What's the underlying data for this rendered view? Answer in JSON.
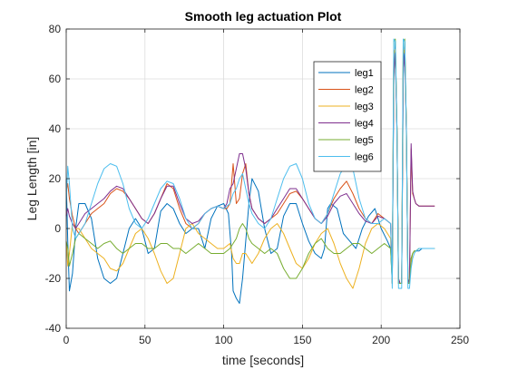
{
  "chart_data": {
    "type": "line",
    "title": "Smooth leg actuation Plot",
    "xlabel": "time [seconds]",
    "ylabel": "Leg Length [in]",
    "xlim": [
      0,
      250
    ],
    "ylim": [
      -40,
      80
    ],
    "xticks": [
      0,
      50,
      100,
      150,
      200,
      250
    ],
    "yticks": [
      -40,
      -20,
      0,
      20,
      40,
      60,
      80
    ],
    "xtick_labels": [
      "0",
      "50",
      "100",
      "150",
      "200",
      "250"
    ],
    "ytick_labels": [
      "-40",
      "-20",
      "0",
      "20",
      "40",
      "60",
      "80"
    ],
    "grid": true,
    "legend_position": "top-right",
    "series": [
      {
        "name": "leg1",
        "color": "#0072BD",
        "x": [
          0,
          1,
          2,
          4,
          6,
          8,
          12,
          16,
          20,
          24,
          28,
          32,
          36,
          40,
          44,
          48,
          52,
          56,
          60,
          64,
          68,
          72,
          76,
          80,
          84,
          88,
          92,
          96,
          100,
          103,
          105,
          106,
          108,
          110,
          112,
          114,
          116,
          118,
          122,
          126,
          130,
          134,
          138,
          142,
          146,
          150,
          154,
          158,
          162,
          164,
          166,
          168,
          172,
          176,
          180,
          184,
          188,
          192,
          196,
          200,
          204,
          206,
          207,
          208,
          209,
          210,
          211,
          212,
          213,
          214,
          215,
          216,
          217,
          218,
          219,
          220,
          221,
          222,
          224,
          226,
          228,
          230,
          232,
          234
        ],
        "y": [
          20,
          -5,
          -25,
          -18,
          0,
          10,
          10,
          4,
          -12,
          -20,
          -22,
          -20,
          -10,
          0,
          4,
          0,
          -10,
          -8,
          7,
          10,
          8,
          2,
          -2,
          0,
          0,
          -8,
          4,
          9,
          10,
          6,
          -10,
          -25,
          -28,
          -30,
          -20,
          -5,
          10,
          20,
          15,
          0,
          -10,
          -8,
          5,
          10,
          10,
          2,
          -5,
          -10,
          -12,
          -8,
          8,
          10,
          8,
          -2,
          -5,
          -8,
          0,
          5,
          8,
          0,
          -5,
          -8,
          -22,
          60,
          75,
          40,
          -22,
          -22,
          -22,
          60,
          75,
          40,
          -22,
          -22,
          -12,
          -10,
          -9,
          -9,
          -9,
          -8,
          -8,
          -8,
          -8,
          -8
        ]
      },
      {
        "name": "leg2",
        "color": "#D95319",
        "x": [
          0,
          1,
          2,
          4,
          6,
          8,
          12,
          16,
          20,
          24,
          28,
          32,
          36,
          40,
          44,
          48,
          52,
          56,
          60,
          64,
          68,
          72,
          76,
          80,
          84,
          88,
          92,
          96,
          100,
          102,
          104,
          106,
          108,
          110,
          112,
          114,
          116,
          118,
          122,
          126,
          130,
          134,
          138,
          142,
          146,
          150,
          154,
          158,
          162,
          166,
          170,
          174,
          178,
          182,
          186,
          190,
          194,
          198,
          202,
          206,
          207,
          208,
          209,
          210,
          211,
          212,
          213,
          214,
          215,
          216,
          217,
          218,
          219,
          220,
          221,
          222,
          224,
          226,
          228,
          230,
          232,
          234
        ],
        "y": [
          15,
          18,
          12,
          5,
          0,
          -2,
          2,
          6,
          8,
          10,
          14,
          16,
          15,
          12,
          8,
          4,
          2,
          6,
          12,
          18,
          16,
          8,
          2,
          0,
          2,
          6,
          8,
          9,
          8,
          8,
          10,
          26,
          10,
          12,
          22,
          26,
          14,
          8,
          4,
          2,
          4,
          6,
          10,
          14,
          15,
          12,
          8,
          4,
          2,
          6,
          12,
          16,
          19,
          14,
          8,
          4,
          2,
          6,
          4,
          2,
          -22,
          70,
          72,
          40,
          -20,
          -22,
          -22,
          70,
          72,
          40,
          -20,
          -22,
          32,
          14,
          12,
          10,
          9,
          9,
          9,
          9,
          9,
          9
        ]
      },
      {
        "name": "leg3",
        "color": "#EDB120",
        "x": [
          0,
          1,
          2,
          4,
          6,
          8,
          12,
          16,
          20,
          24,
          28,
          32,
          36,
          40,
          44,
          48,
          52,
          56,
          60,
          64,
          68,
          72,
          76,
          80,
          84,
          88,
          92,
          96,
          100,
          104,
          106,
          108,
          110,
          112,
          114,
          116,
          118,
          122,
          126,
          130,
          134,
          138,
          142,
          146,
          150,
          154,
          158,
          162,
          166,
          170,
          174,
          178,
          182,
          186,
          190,
          194,
          198,
          202,
          206,
          207,
          208,
          209,
          210,
          211,
          212,
          213,
          214,
          215,
          216,
          217,
          218,
          219,
          220,
          221,
          222,
          224,
          226,
          228,
          230,
          232,
          234
        ],
        "y": [
          -5,
          -15,
          -10,
          2,
          0,
          0,
          -4,
          -8,
          -10,
          -12,
          -16,
          -17,
          -14,
          -8,
          -2,
          0,
          -4,
          -10,
          -17,
          -22,
          -20,
          -10,
          0,
          2,
          -2,
          -4,
          -6,
          -8,
          -8,
          -6,
          -12,
          -14,
          -14,
          -10,
          -10,
          -12,
          -14,
          -10,
          -4,
          0,
          2,
          -2,
          -8,
          -14,
          -16,
          -12,
          -6,
          -2,
          0,
          -6,
          -14,
          -20,
          -24,
          -16,
          -6,
          0,
          2,
          0,
          -4,
          -22,
          70,
          72,
          40,
          -22,
          -22,
          -22,
          70,
          72,
          40,
          -22,
          -22,
          -14,
          -10,
          -9,
          -9,
          -8,
          -8,
          -8,
          -8,
          -8,
          -8
        ]
      },
      {
        "name": "leg4",
        "color": "#7E2F8E",
        "x": [
          0,
          1,
          2,
          4,
          6,
          8,
          12,
          16,
          20,
          24,
          28,
          32,
          36,
          40,
          44,
          48,
          52,
          56,
          60,
          64,
          68,
          72,
          76,
          80,
          84,
          88,
          92,
          96,
          100,
          102,
          104,
          106,
          108,
          110,
          112,
          114,
          116,
          118,
          122,
          126,
          130,
          134,
          138,
          142,
          146,
          150,
          154,
          158,
          162,
          166,
          170,
          174,
          178,
          182,
          186,
          190,
          194,
          198,
          202,
          206,
          207,
          208,
          209,
          210,
          211,
          212,
          213,
          214,
          215,
          216,
          217,
          218,
          219,
          220,
          221,
          222,
          224,
          226,
          228,
          230,
          232,
          234
        ],
        "y": [
          5,
          8,
          5,
          2,
          0,
          2,
          6,
          8,
          10,
          12,
          15,
          17,
          16,
          12,
          8,
          4,
          2,
          6,
          12,
          17,
          17,
          10,
          4,
          2,
          3,
          6,
          8,
          9,
          8,
          10,
          16,
          18,
          24,
          30,
          30,
          24,
          14,
          8,
          4,
          2,
          4,
          8,
          12,
          16,
          16,
          12,
          8,
          4,
          2,
          5,
          10,
          13,
          14,
          10,
          6,
          3,
          2,
          5,
          4,
          2,
          -22,
          62,
          70,
          38,
          -20,
          -22,
          -22,
          62,
          70,
          38,
          -20,
          -22,
          34,
          15,
          12,
          10,
          9,
          9,
          9,
          9,
          9,
          9
        ]
      },
      {
        "name": "leg5",
        "color": "#77AC30",
        "x": [
          0,
          1,
          2,
          4,
          6,
          8,
          12,
          16,
          20,
          24,
          28,
          32,
          36,
          40,
          44,
          48,
          52,
          56,
          60,
          64,
          68,
          72,
          76,
          80,
          84,
          88,
          92,
          96,
          100,
          104,
          108,
          110,
          112,
          114,
          116,
          118,
          122,
          126,
          130,
          134,
          138,
          142,
          146,
          150,
          154,
          158,
          162,
          166,
          170,
          174,
          178,
          182,
          186,
          190,
          194,
          198,
          202,
          206,
          207,
          208,
          209,
          210,
          211,
          212,
          213,
          214,
          215,
          216,
          217,
          218,
          219,
          220,
          221,
          222,
          224,
          226,
          228,
          230,
          232,
          234
        ],
        "y": [
          -5,
          -8,
          -15,
          -10,
          -4,
          -2,
          -4,
          -6,
          -8,
          -6,
          -5,
          -8,
          -10,
          -8,
          -6,
          -6,
          -8,
          -8,
          -6,
          -6,
          -8,
          -8,
          -10,
          -8,
          -6,
          -8,
          -10,
          -10,
          -10,
          -8,
          -4,
          0,
          2,
          0,
          -4,
          -6,
          -8,
          -10,
          -8,
          -10,
          -16,
          -20,
          -20,
          -16,
          -10,
          -6,
          -4,
          -8,
          -10,
          -10,
          -8,
          -6,
          -6,
          -8,
          -10,
          -8,
          -6,
          -8,
          -22,
          75,
          76,
          40,
          -22,
          -22,
          -22,
          75,
          76,
          40,
          -22,
          -22,
          -12,
          -10,
          -9,
          -9,
          -8,
          -8,
          -8,
          -8,
          -8,
          -8
        ]
      },
      {
        "name": "leg6",
        "color": "#4DBEEE",
        "x": [
          0,
          1,
          2,
          4,
          6,
          8,
          12,
          16,
          20,
          24,
          28,
          32,
          36,
          40,
          44,
          48,
          52,
          56,
          60,
          64,
          68,
          72,
          76,
          80,
          84,
          88,
          92,
          96,
          100,
          104,
          106,
          108,
          110,
          112,
          114,
          116,
          118,
          122,
          126,
          130,
          134,
          138,
          142,
          146,
          150,
          154,
          158,
          162,
          166,
          170,
          174,
          178,
          182,
          186,
          190,
          194,
          198,
          202,
          206,
          207,
          208,
          209,
          210,
          211,
          212,
          213,
          214,
          215,
          216,
          217,
          218,
          219,
          220,
          221,
          222,
          224,
          226,
          228,
          230,
          232,
          234
        ],
        "y": [
          10,
          25,
          18,
          0,
          -4,
          -2,
          2,
          10,
          18,
          24,
          26,
          25,
          18,
          8,
          2,
          0,
          4,
          10,
          16,
          19,
          18,
          12,
          4,
          0,
          2,
          6,
          8,
          9,
          8,
          10,
          14,
          16,
          20,
          22,
          16,
          10,
          6,
          2,
          0,
          4,
          12,
          20,
          25,
          26,
          20,
          10,
          4,
          2,
          6,
          14,
          22,
          26,
          24,
          12,
          4,
          2,
          2,
          4,
          2,
          -24,
          76,
          75,
          40,
          -24,
          -24,
          -24,
          76,
          75,
          40,
          -24,
          -24,
          -16,
          -12,
          -10,
          -9,
          -8,
          -8,
          -8,
          -8,
          -8,
          -8
        ]
      }
    ]
  }
}
